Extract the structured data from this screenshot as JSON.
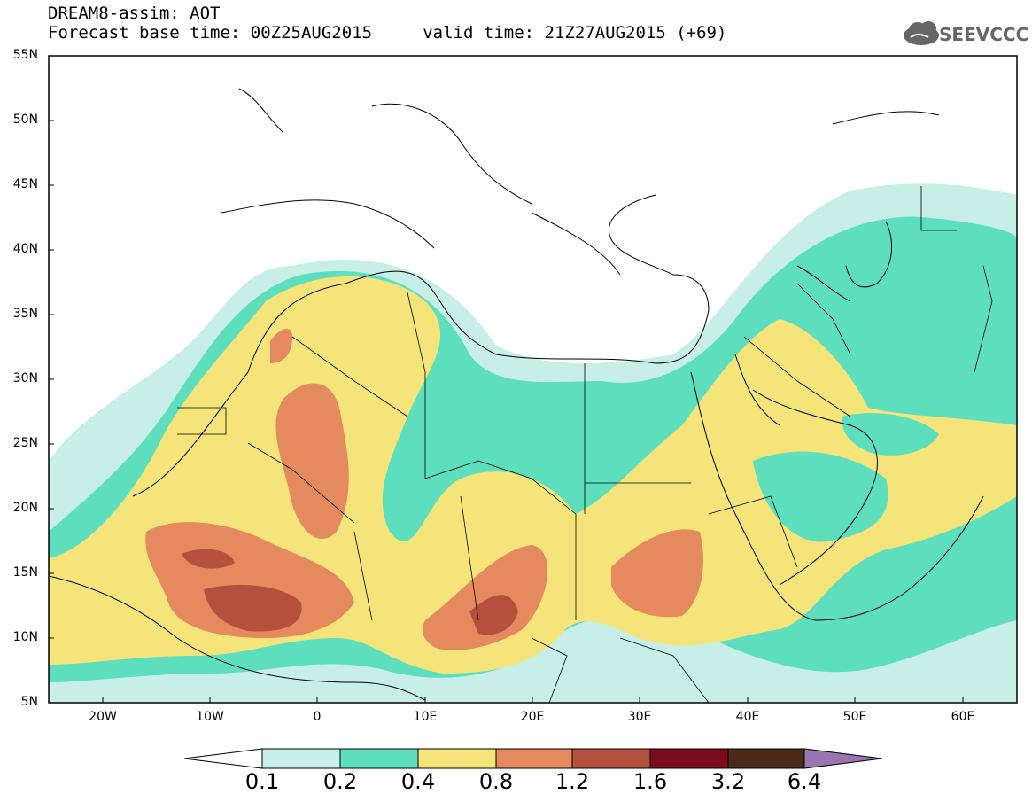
{
  "header": {
    "line1": "DREAM8-assim: AOT",
    "line2": "Forecast base time: 00Z25AUG2015     valid time: 21Z27AUG2015 (+69)"
  },
  "logo": {
    "text": "SEEVCCC",
    "icon": "cloud-icon",
    "color": "#666666"
  },
  "map": {
    "lat_labels": [
      "55N",
      "50N",
      "45N",
      "40N",
      "35N",
      "30N",
      "25N",
      "20N",
      "15N",
      "10N",
      "5N"
    ],
    "lon_labels": [
      "20W",
      "10W",
      "0",
      "10E",
      "20E",
      "30E",
      "40E",
      "50E",
      "60E"
    ],
    "extent": {
      "lon_min": -25,
      "lon_max": 65,
      "lat_min": 5,
      "lat_max": 55
    }
  },
  "colorbar": {
    "labels": [
      "0.1",
      "0.2",
      "0.4",
      "0.8",
      "1.2",
      "1.6",
      "3.2",
      "6.4"
    ],
    "colors": [
      "#ffffff",
      "#c8eee8",
      "#5ddfbe",
      "#f5e47a",
      "#e5895e",
      "#b3503e",
      "#7a0c1c",
      "#4a2a18",
      "#9a76b0"
    ]
  }
}
